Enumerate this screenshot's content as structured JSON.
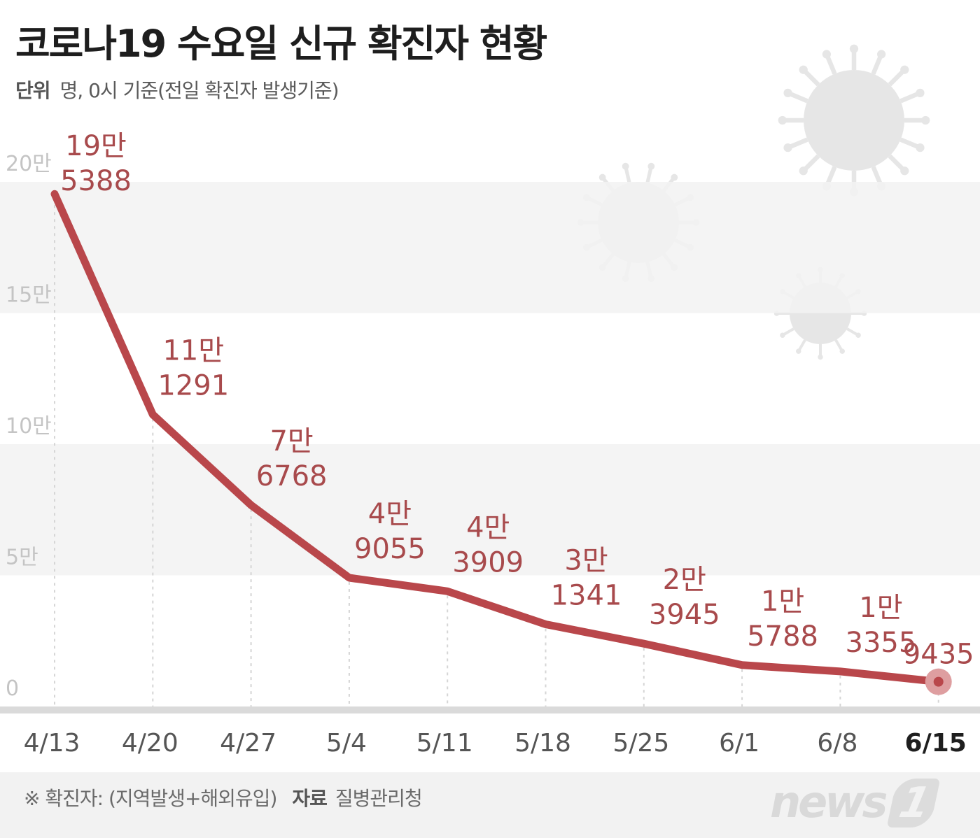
{
  "title": "코로나19 수요일 신규 확진자 현황",
  "subtitle": {
    "unit_label": "단위",
    "unit_text": "명, 0시 기준(전일 확진자 발생기준)"
  },
  "footer": {
    "note": "※ 확진자: (지역발생+해외유입)",
    "source_label": "자료",
    "source": "질병관리청",
    "logo_text": "news",
    "logo_mark": "1"
  },
  "colors": {
    "line": "#b9474b",
    "label": "#a84a4c",
    "band": "#f2f2f2",
    "highlight_dot": "#de9ea0",
    "axis_tick": "#555555",
    "y_tick": "#c4c4c4"
  },
  "chart_data": {
    "type": "line",
    "title": "코로나19 수요일 신규 확진자 현황",
    "xlabel": "",
    "ylabel": "",
    "categories": [
      "4/13",
      "4/20",
      "4/27",
      "5/4",
      "5/11",
      "5/18",
      "5/25",
      "6/1",
      "6/8",
      "6/15"
    ],
    "values": [
      195388,
      111291,
      76768,
      49055,
      43909,
      31341,
      23945,
      15788,
      13355,
      9435
    ],
    "data_labels": [
      [
        "19만",
        "5388"
      ],
      [
        "11만",
        "1291"
      ],
      [
        "7만",
        "6768"
      ],
      [
        "4만",
        "9055"
      ],
      [
        "4만",
        "3909"
      ],
      [
        "3만",
        "1341"
      ],
      [
        "2만",
        "3945"
      ],
      [
        "1만",
        "5788"
      ],
      [
        "1만",
        "3355"
      ],
      [
        "",
        "9435"
      ]
    ],
    "y_ticks": [
      {
        "value": 0,
        "label": "0"
      },
      {
        "value": 50000,
        "label": "5만"
      },
      {
        "value": 100000,
        "label": "10만"
      },
      {
        "value": 150000,
        "label": "15만"
      },
      {
        "value": 200000,
        "label": "20만"
      }
    ],
    "ylim": [
      0,
      200000
    ],
    "highlight_last": true,
    "grid": "alternating horizontal bands"
  }
}
